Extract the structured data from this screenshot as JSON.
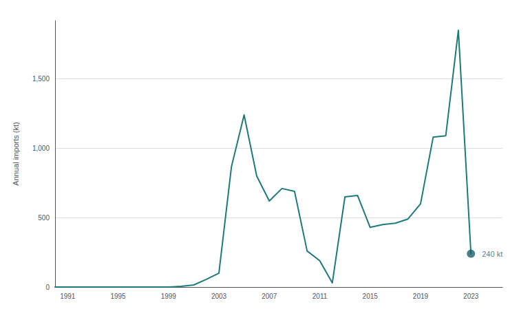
{
  "chart_data": {
    "type": "line",
    "x": [
      1990,
      1991,
      1992,
      1993,
      1994,
      1995,
      1996,
      1997,
      1998,
      1999,
      2000,
      2001,
      2002,
      2003,
      2004,
      2005,
      2006,
      2007,
      2008,
      2009,
      2010,
      2011,
      2012,
      2013,
      2014,
      2015,
      2016,
      2017,
      2018,
      2019,
      2020,
      2021,
      2022,
      2023
    ],
    "values": [
      0,
      0,
      0,
      0,
      0,
      0,
      0,
      0,
      0,
      0,
      5,
      15,
      55,
      100,
      870,
      1240,
      800,
      620,
      710,
      690,
      260,
      190,
      30,
      650,
      660,
      430,
      450,
      460,
      490,
      600,
      1080,
      1090,
      1850,
      240
    ],
    "color": "#1d7a7a",
    "ylabel": "Annual imports (kt)",
    "xlim": [
      1990,
      2025.5
    ],
    "xticks": [
      1991,
      1995,
      1999,
      2003,
      2007,
      2011,
      2015,
      2019,
      2023
    ],
    "ylim": [
      0,
      1920
    ],
    "yticks": [
      0,
      500,
      {
        "value": 1000,
        "label": "1,000"
      },
      {
        "value": 1500,
        "label": "1,500"
      }
    ],
    "grid": true,
    "annotations": [
      {
        "text": "240 kt",
        "x": 2023,
        "y": 240,
        "color": "#1a5f6a"
      }
    ]
  }
}
